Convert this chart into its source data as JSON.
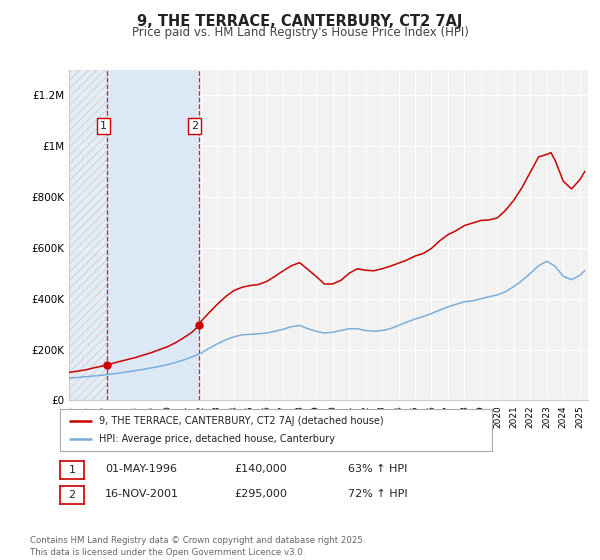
{
  "title": "9, THE TERRACE, CANTERBURY, CT2 7AJ",
  "subtitle": "Price paid vs. HM Land Registry's House Price Index (HPI)",
  "ylim": [
    0,
    1300000
  ],
  "xlim_start": 1994.0,
  "xlim_end": 2025.5,
  "background_color": "#ffffff",
  "plot_bg_color": "#f2f2f2",
  "grid_color": "#ffffff",
  "sale1_date": 1996.33,
  "sale1_price": 140000,
  "sale1_label": "1",
  "sale1_date_str": "01-MAY-1996",
  "sale1_price_str": "£140,000",
  "sale1_pct": "63% ↑ HPI",
  "sale2_date": 2001.88,
  "sale2_price": 295000,
  "sale2_label": "2",
  "sale2_date_str": "16-NOV-2001",
  "sale2_price_str": "£295,000",
  "sale2_pct": "72% ↑ HPI",
  "red_color": "#cc0000",
  "blue_color": "#7aaedb",
  "shade_color": "#dce8f5",
  "legend_label_red": "9, THE TERRACE, CANTERBURY, CT2 7AJ (detached house)",
  "legend_label_blue": "HPI: Average price, detached house, Canterbury",
  "footer": "Contains HM Land Registry data © Crown copyright and database right 2025.\nThis data is licensed under the Open Government Licence v3.0.",
  "ytick_labels": [
    "£0",
    "£200K",
    "£400K",
    "£600K",
    "£800K",
    "£1M",
    "£1.2M"
  ],
  "ytick_values": [
    0,
    200000,
    400000,
    600000,
    800000,
    1000000,
    1200000
  ],
  "red_line_x": [
    1994.0,
    1994.5,
    1995.0,
    1995.5,
    1996.0,
    1996.33,
    1996.5,
    1997.0,
    1997.5,
    1998.0,
    1998.5,
    1999.0,
    1999.5,
    2000.0,
    2000.5,
    2001.0,
    2001.5,
    2001.88,
    2002.0,
    2002.5,
    2003.0,
    2003.5,
    2004.0,
    2004.5,
    2005.0,
    2005.5,
    2006.0,
    2006.5,
    2007.0,
    2007.5,
    2008.0,
    2008.5,
    2009.0,
    2009.5,
    2010.0,
    2010.5,
    2011.0,
    2011.5,
    2012.0,
    2012.5,
    2013.0,
    2013.5,
    2014.0,
    2014.5,
    2015.0,
    2015.5,
    2016.0,
    2016.5,
    2017.0,
    2017.5,
    2018.0,
    2018.5,
    2019.0,
    2019.5,
    2020.0,
    2020.5,
    2021.0,
    2021.5,
    2022.0,
    2022.5,
    2023.0,
    2023.25,
    2023.5,
    2024.0,
    2024.5,
    2025.0,
    2025.3
  ],
  "red_line_y": [
    110000,
    115000,
    120000,
    128000,
    135000,
    140000,
    143000,
    152000,
    160000,
    168000,
    178000,
    188000,
    200000,
    212000,
    228000,
    248000,
    270000,
    295000,
    310000,
    345000,
    378000,
    408000,
    432000,
    445000,
    452000,
    456000,
    468000,
    488000,
    510000,
    530000,
    542000,
    515000,
    488000,
    458000,
    458000,
    472000,
    500000,
    518000,
    512000,
    510000,
    518000,
    528000,
    540000,
    552000,
    568000,
    578000,
    598000,
    628000,
    652000,
    668000,
    688000,
    698000,
    708000,
    710000,
    718000,
    748000,
    788000,
    838000,
    898000,
    958000,
    968000,
    975000,
    945000,
    862000,
    832000,
    868000,
    900000
  ],
  "blue_line_x": [
    1994.0,
    1994.5,
    1995.0,
    1995.5,
    1996.0,
    1996.5,
    1997.0,
    1997.5,
    1998.0,
    1998.5,
    1999.0,
    1999.5,
    2000.0,
    2000.5,
    2001.0,
    2001.5,
    2002.0,
    2002.5,
    2003.0,
    2003.5,
    2004.0,
    2004.5,
    2005.0,
    2005.5,
    2006.0,
    2006.5,
    2007.0,
    2007.5,
    2008.0,
    2008.5,
    2009.0,
    2009.5,
    2010.0,
    2010.5,
    2011.0,
    2011.5,
    2012.0,
    2012.5,
    2013.0,
    2013.5,
    2014.0,
    2014.5,
    2015.0,
    2015.5,
    2016.0,
    2016.5,
    2017.0,
    2017.5,
    2018.0,
    2018.5,
    2019.0,
    2019.5,
    2020.0,
    2020.5,
    2021.0,
    2021.5,
    2022.0,
    2022.5,
    2023.0,
    2023.5,
    2024.0,
    2024.5,
    2025.0,
    2025.3
  ],
  "blue_line_y": [
    88000,
    90000,
    93000,
    96000,
    99000,
    103000,
    107000,
    112000,
    117000,
    122000,
    128000,
    134000,
    141000,
    150000,
    160000,
    172000,
    185000,
    205000,
    222000,
    238000,
    250000,
    258000,
    260000,
    262000,
    265000,
    272000,
    280000,
    290000,
    295000,
    282000,
    272000,
    265000,
    268000,
    275000,
    282000,
    282000,
    275000,
    272000,
    275000,
    282000,
    295000,
    308000,
    320000,
    330000,
    342000,
    355000,
    368000,
    378000,
    388000,
    392000,
    400000,
    408000,
    415000,
    428000,
    448000,
    472000,
    500000,
    530000,
    548000,
    528000,
    488000,
    475000,
    492000,
    510000
  ]
}
